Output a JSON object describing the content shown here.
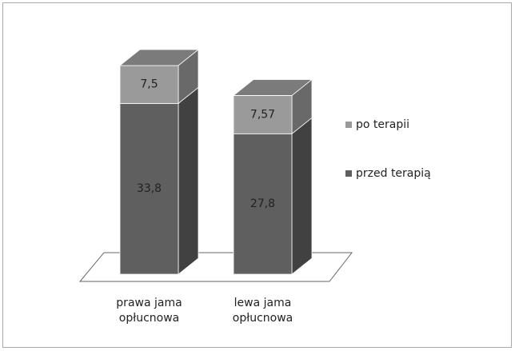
{
  "chart_data": {
    "type": "bar3d_stacked",
    "categories": [
      "prawa jama opłucnowa",
      "lewa jama opłucnowa"
    ],
    "series": [
      {
        "name": "przed terapią",
        "color": "#5f5f5f",
        "values": [
          33.8,
          27.8
        ],
        "value_labels": [
          "33,8",
          "27,8"
        ]
      },
      {
        "name": "po terapii",
        "color": "#9a9a9a",
        "values": [
          7.5,
          7.57
        ],
        "value_labels": [
          "7,5",
          "7,57"
        ]
      }
    ],
    "legend": "right"
  }
}
